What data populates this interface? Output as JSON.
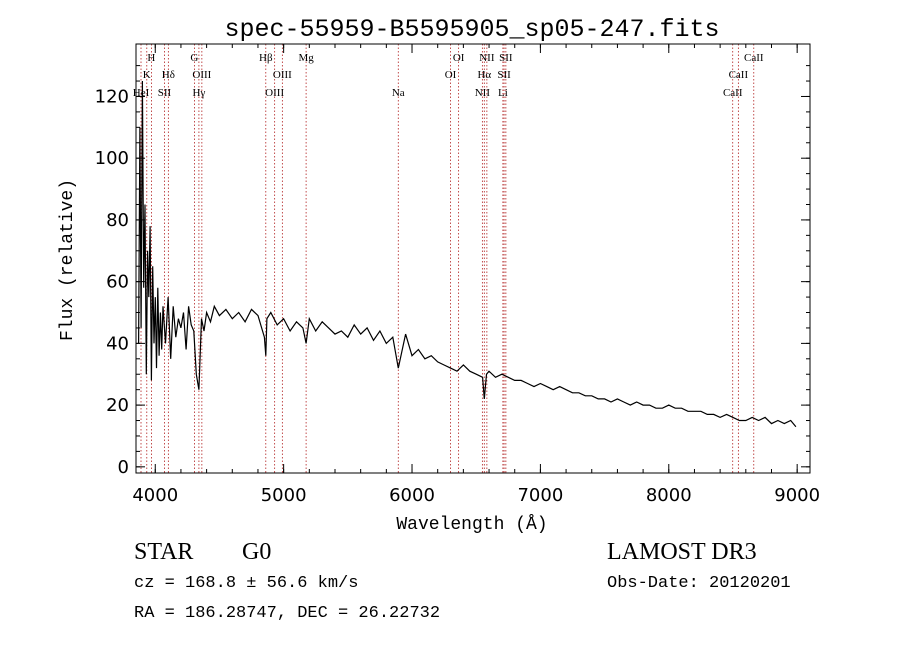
{
  "chart_data": {
    "type": "line",
    "title": "spec-55959-B5595905_sp05-247.fits",
    "xlabel": "Wavelength (Å)",
    "ylabel": "Flux (relative)",
    "xlim": [
      3850,
      9100
    ],
    "ylim": [
      -2,
      137
    ],
    "xticks": [
      4000,
      5000,
      6000,
      7000,
      8000,
      9000
    ],
    "yticks": [
      0,
      20,
      40,
      60,
      80,
      100,
      120
    ],
    "series": [
      {
        "name": "spectrum",
        "x": [
          3870,
          3880,
          3890,
          3900,
          3910,
          3920,
          3930,
          3940,
          3950,
          3960,
          3970,
          3980,
          3990,
          4000,
          4010,
          4020,
          4030,
          4040,
          4050,
          4060,
          4080,
          4100,
          4120,
          4140,
          4160,
          4180,
          4200,
          4220,
          4240,
          4260,
          4280,
          4300,
          4320,
          4340,
          4360,
          4380,
          4400,
          4430,
          4460,
          4500,
          4550,
          4600,
          4650,
          4700,
          4750,
          4800,
          4850,
          4861,
          4870,
          4900,
          4950,
          5000,
          5050,
          5100,
          5150,
          5175,
          5200,
          5250,
          5300,
          5350,
          5400,
          5450,
          5500,
          5550,
          5600,
          5650,
          5700,
          5750,
          5800,
          5850,
          5893,
          5950,
          6000,
          6050,
          6100,
          6150,
          6200,
          6250,
          6300,
          6350,
          6400,
          6450,
          6500,
          6550,
          6563,
          6580,
          6600,
          6650,
          6700,
          6750,
          6800,
          6850,
          6900,
          6950,
          7000,
          7050,
          7100,
          7150,
          7200,
          7250,
          7300,
          7350,
          7400,
          7450,
          7500,
          7550,
          7600,
          7650,
          7700,
          7750,
          7800,
          7850,
          7900,
          7950,
          8000,
          8050,
          8100,
          8150,
          8200,
          8250,
          8300,
          8350,
          8400,
          8450,
          8500,
          8550,
          8600,
          8650,
          8700,
          8750,
          8800,
          8850,
          8900,
          8950,
          8990
        ],
        "values": [
          40,
          110,
          45,
          125,
          58,
          85,
          30,
          70,
          55,
          78,
          28,
          65,
          40,
          55,
          32,
          58,
          36,
          50,
          38,
          52,
          40,
          55,
          35,
          52,
          42,
          48,
          45,
          50,
          38,
          52,
          46,
          44,
          30,
          25,
          48,
          44,
          50,
          47,
          52,
          49,
          51,
          48,
          50,
          47,
          51,
          49,
          42,
          36,
          48,
          50,
          46,
          48,
          44,
          47,
          45,
          40,
          48,
          44,
          47,
          45,
          43,
          44,
          42,
          46,
          43,
          45,
          41,
          44,
          40,
          42,
          32,
          43,
          36,
          38,
          35,
          36,
          34,
          33,
          32,
          31,
          33,
          31,
          30,
          29,
          22,
          30,
          31,
          29,
          30,
          29,
          28,
          28,
          27,
          26,
          27,
          26,
          25,
          26,
          25,
          24,
          24,
          23,
          23,
          22,
          22,
          21,
          22,
          21,
          20,
          21,
          20,
          20,
          19,
          19,
          20,
          19,
          19,
          18,
          18,
          18,
          17,
          17,
          16,
          17,
          16,
          15,
          15,
          16,
          15,
          16,
          14,
          15,
          14,
          15,
          13
        ]
      }
    ],
    "line_labels": [
      {
        "text": "H",
        "x": 3970,
        "row": 1
      },
      {
        "text": "K",
        "x": 3934,
        "row": 2
      },
      {
        "text": "Hδ",
        "x": 4102,
        "row": 2
      },
      {
        "text": "HeI",
        "x": 3889,
        "row": 3
      },
      {
        "text": "SII",
        "x": 4072,
        "row": 3
      },
      {
        "text": "G",
        "x": 4305,
        "row": 1
      },
      {
        "text": "OIII",
        "x": 4363,
        "row": 2
      },
      {
        "text": "Hγ",
        "x": 4340,
        "row": 3
      },
      {
        "text": "Hβ",
        "x": 4861,
        "row": 1
      },
      {
        "text": "OIII",
        "x": 4990,
        "row": 2
      },
      {
        "text": "OIII",
        "x": 4930,
        "row": 3
      },
      {
        "text": "Mg",
        "x": 5175,
        "row": 1
      },
      {
        "text": "Na",
        "x": 5893,
        "row": 3
      },
      {
        "text": "OI",
        "x": 6363,
        "row": 1
      },
      {
        "text": "OI",
        "x": 6300,
        "row": 2
      },
      {
        "text": "NII",
        "x": 6583,
        "row": 1
      },
      {
        "text": "SII",
        "x": 6731,
        "row": 1
      },
      {
        "text": "Hα",
        "x": 6563,
        "row": 2
      },
      {
        "text": "SII",
        "x": 6717,
        "row": 2
      },
      {
        "text": "NII",
        "x": 6548,
        "row": 3
      },
      {
        "text": "Li",
        "x": 6708,
        "row": 3
      },
      {
        "text": "CaII",
        "x": 8662,
        "row": 1
      },
      {
        "text": "CaII",
        "x": 8542,
        "row": 2
      },
      {
        "text": "CaII",
        "x": 8498,
        "row": 3
      }
    ]
  },
  "footer": {
    "class_label": "STAR",
    "subclass_label": "G0",
    "survey": "LAMOST DR3",
    "cz": "cz = 168.8 ± 56.6 km/s",
    "obs_date": "Obs-Date: 20120201",
    "radec": "RA = 186.28747, DEC =  26.22732"
  },
  "colors": {
    "line_marker": "#b22222",
    "spectrum": "#000000",
    "axes": "#000000"
  }
}
